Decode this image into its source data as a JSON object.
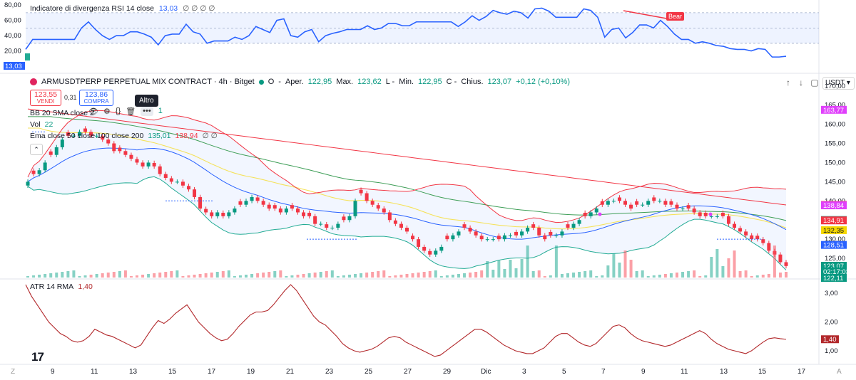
{
  "rsi": {
    "title": "Indicatore di divergenza RSI 14 close",
    "value": "13,03",
    "flags": "∅ ∅ ∅ ∅",
    "axis": [
      "80,00",
      "60,00",
      "40,00",
      "20,00"
    ],
    "last_tag": "13,03",
    "bear_label": "Bear",
    "values": [
      22,
      35,
      35,
      35,
      35,
      35,
      35,
      35,
      50,
      58,
      48,
      40,
      35,
      40,
      40,
      45,
      45,
      42,
      38,
      28,
      40,
      42,
      42,
      55,
      45,
      42,
      30,
      33,
      33,
      33,
      38,
      35,
      40,
      52,
      48,
      44,
      60,
      62,
      40,
      38,
      45,
      48,
      32,
      40,
      43,
      45,
      48,
      48,
      48,
      53,
      48,
      50,
      56,
      56,
      53,
      53,
      58,
      58,
      58,
      58,
      58,
      58,
      52,
      58,
      66,
      60,
      65,
      73,
      70,
      68,
      72,
      70,
      63,
      75,
      76,
      72,
      64,
      64,
      64,
      64,
      75,
      73,
      64,
      38,
      48,
      50,
      37,
      44,
      54,
      54,
      50,
      60,
      52,
      42,
      35,
      35,
      30,
      32,
      30,
      27,
      26,
      23,
      22,
      22,
      20,
      23,
      22,
      12,
      12,
      13
    ]
  },
  "main": {
    "symbol": "ARMUSDTPERP PERPETUAL MIX CONTRACT · 4h · Bitget",
    "o_label": "O",
    "open_label": "Aper.",
    "open": "122,95",
    "high_label": "Max.",
    "high": "123,62",
    "low_label": "Min.",
    "low": "122,95",
    "close_label": "Chius.",
    "close": "123,07",
    "change": "+0,12 (+0,10%)",
    "sell_price": "123,55",
    "sell_label": "VENDI",
    "spread": "0,31",
    "buy_price": "123,86",
    "buy_label": "COMPRA",
    "currency": "USDT",
    "tooltip": "Altro",
    "bb_label": "BB 20 SMA close 2",
    "bb_trailing": "1",
    "vol_label": "Vol",
    "vol_value": "22",
    "ema_label": "Ema close 50 close 100 close 200",
    "ema_vals": [
      "135,01",
      "138,94"
    ],
    "ema_flags": "∅ ∅",
    "axis": [
      "170,00",
      "165,00",
      "160,00",
      "155,00",
      "150,00",
      "145,00",
      "140,00",
      "135,00",
      "130,00",
      "125,00"
    ],
    "tags": [
      {
        "text": "163,77",
        "color": "#e040fb",
        "price": 163.77
      },
      {
        "text": "138,94",
        "color": "#f23645",
        "price": 138.94
      },
      {
        "text": "138,84",
        "color": "#e040fb",
        "price": 138.84
      },
      {
        "text": "135,01",
        "color": "#089981",
        "price": 135.01
      },
      {
        "text": "134,91",
        "color": "#f23645",
        "price": 134.91
      },
      {
        "text": "132,35",
        "color": "#f5d800",
        "price": 132.35
      },
      {
        "text": "128,51",
        "color": "#2962ff",
        "price": 128.51
      },
      {
        "text": "123,07",
        "color": "#089981",
        "price": 123.07
      },
      {
        "text": "02:17:03",
        "color": "#089981",
        "price": 121.6
      },
      {
        "text": "122,11",
        "color": "#089981",
        "price": 119.9
      }
    ]
  },
  "atr": {
    "label": "ATR 14 RMA",
    "value": "1,40",
    "axis": [
      "3,00",
      "2,00",
      "1,00"
    ],
    "last_tag": "1,40"
  },
  "x_axis": {
    "labels": [
      "Z",
      "9",
      "11",
      "13",
      "15",
      "17",
      "19",
      "21",
      "23",
      "25",
      "27",
      "29",
      "Dic",
      "3",
      "5",
      "7",
      "9",
      "11",
      "13",
      "15",
      "17",
      "A"
    ]
  },
  "chart_data": {
    "type": "candlestick",
    "timeframe": "4h",
    "price_range": [
      120,
      172
    ],
    "closes": [
      145,
      147,
      148,
      150,
      152,
      154,
      156,
      157,
      157,
      158,
      158,
      157,
      157,
      156,
      155,
      153,
      153,
      152,
      151,
      150,
      149,
      150,
      149,
      147,
      146,
      145,
      145,
      144,
      143,
      141,
      138,
      137,
      136,
      137,
      136,
      137,
      138,
      139,
      140,
      141,
      140,
      139,
      138,
      138,
      137,
      138,
      138,
      137,
      136,
      136,
      134,
      134,
      133,
      133,
      134,
      135,
      136,
      140,
      142,
      140,
      139,
      138,
      137,
      135,
      134,
      133,
      132,
      130,
      128,
      127,
      126,
      127,
      128,
      130,
      131,
      132,
      133,
      132,
      131,
      130,
      130,
      130,
      130,
      131,
      131,
      131,
      132,
      133,
      133,
      131,
      130,
      131,
      131,
      132,
      133,
      134,
      135,
      136,
      137,
      138,
      139,
      140,
      140,
      140,
      139,
      138,
      139,
      139,
      140,
      140,
      140,
      139,
      139,
      138,
      138,
      138,
      137,
      136,
      136,
      136,
      136,
      136,
      134,
      133,
      132,
      131,
      130,
      130,
      129,
      127,
      126,
      124,
      123
    ],
    "atr": [
      3.3,
      2.9,
      2.6,
      2.3,
      2.0,
      1.8,
      1.6,
      1.5,
      1.35,
      1.3,
      1.35,
      1.5,
      1.75,
      1.65,
      1.55,
      1.5,
      1.4,
      1.3,
      1.2,
      1.1,
      1.2,
      1.5,
      1.8,
      2.05,
      1.95,
      2.1,
      2.3,
      2.45,
      2.6,
      2.3,
      2.0,
      1.8,
      1.6,
      1.45,
      1.35,
      1.4,
      1.6,
      1.85,
      2.05,
      2.25,
      2.35,
      2.35,
      2.4,
      2.6,
      2.85,
      3.1,
      3.3,
      3.1,
      2.8,
      2.5,
      2.2,
      2.0,
      1.9,
      1.7,
      1.5,
      1.25,
      1.1,
      1.0,
      0.95,
      1.0,
      1.05,
      1.15,
      1.3,
      1.45,
      1.5,
      1.45,
      1.3,
      1.2,
      1.1,
      1.0,
      0.9,
      0.8,
      0.85,
      1.0,
      1.15,
      1.3,
      1.45,
      1.6,
      1.75,
      1.75,
      1.65,
      1.5,
      1.35,
      1.2,
      1.1,
      1.0,
      0.95,
      0.9,
      0.9,
      1.0,
      1.1,
      1.3,
      1.5,
      1.6,
      1.6,
      1.45,
      1.3,
      1.2,
      1.15,
      1.25,
      1.45,
      1.65,
      1.85,
      1.9,
      1.8,
      1.6,
      1.45,
      1.35,
      1.3,
      1.25,
      1.2,
      1.15,
      1.2,
      1.3,
      1.4,
      1.5,
      1.6,
      1.7,
      1.6,
      1.4,
      1.25,
      1.15,
      1.05,
      1.0,
      0.95,
      0.9,
      1.0,
      1.15,
      1.3,
      1.42,
      1.45,
      1.42,
      1.4
    ]
  }
}
